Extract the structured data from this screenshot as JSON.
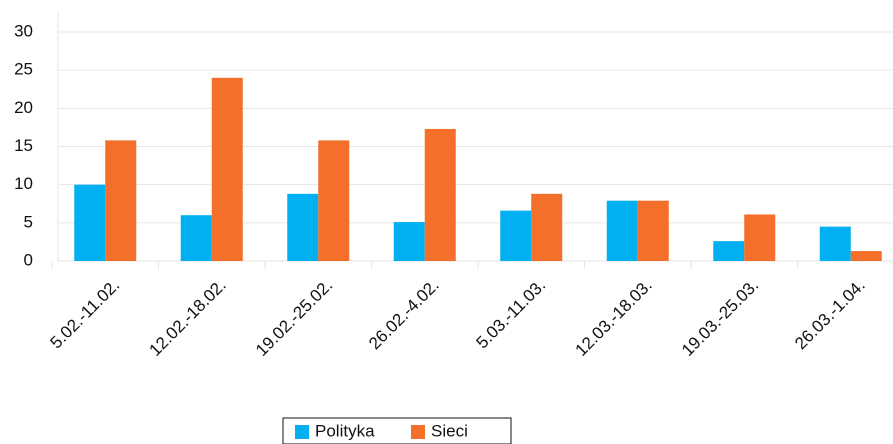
{
  "chart_data": {
    "type": "bar",
    "categories": [
      "5.02.-11.02.",
      "12.02.-18.02.",
      "19.02.-25.02.",
      "26.02.-4.02.",
      "5.03.-11.03.",
      "12.03.-18.03.",
      "19.03.-25.03.",
      "26.03.-1.04."
    ],
    "series": [
      {
        "name": "Polityka",
        "color": "#00b0f0",
        "values": [
          10,
          6,
          8.8,
          5.1,
          6.6,
          7.9,
          2.6,
          4.5
        ]
      },
      {
        "name": "Sieci",
        "color": "#f36f2a",
        "values": [
          15.8,
          24,
          15.8,
          17.3,
          8.8,
          7.9,
          6.1,
          1.3
        ]
      }
    ],
    "ylim": [
      0,
      30
    ],
    "yticks": [
      0,
      5,
      10,
      15,
      20,
      25,
      30
    ],
    "grid": true,
    "legend": "bottom"
  }
}
